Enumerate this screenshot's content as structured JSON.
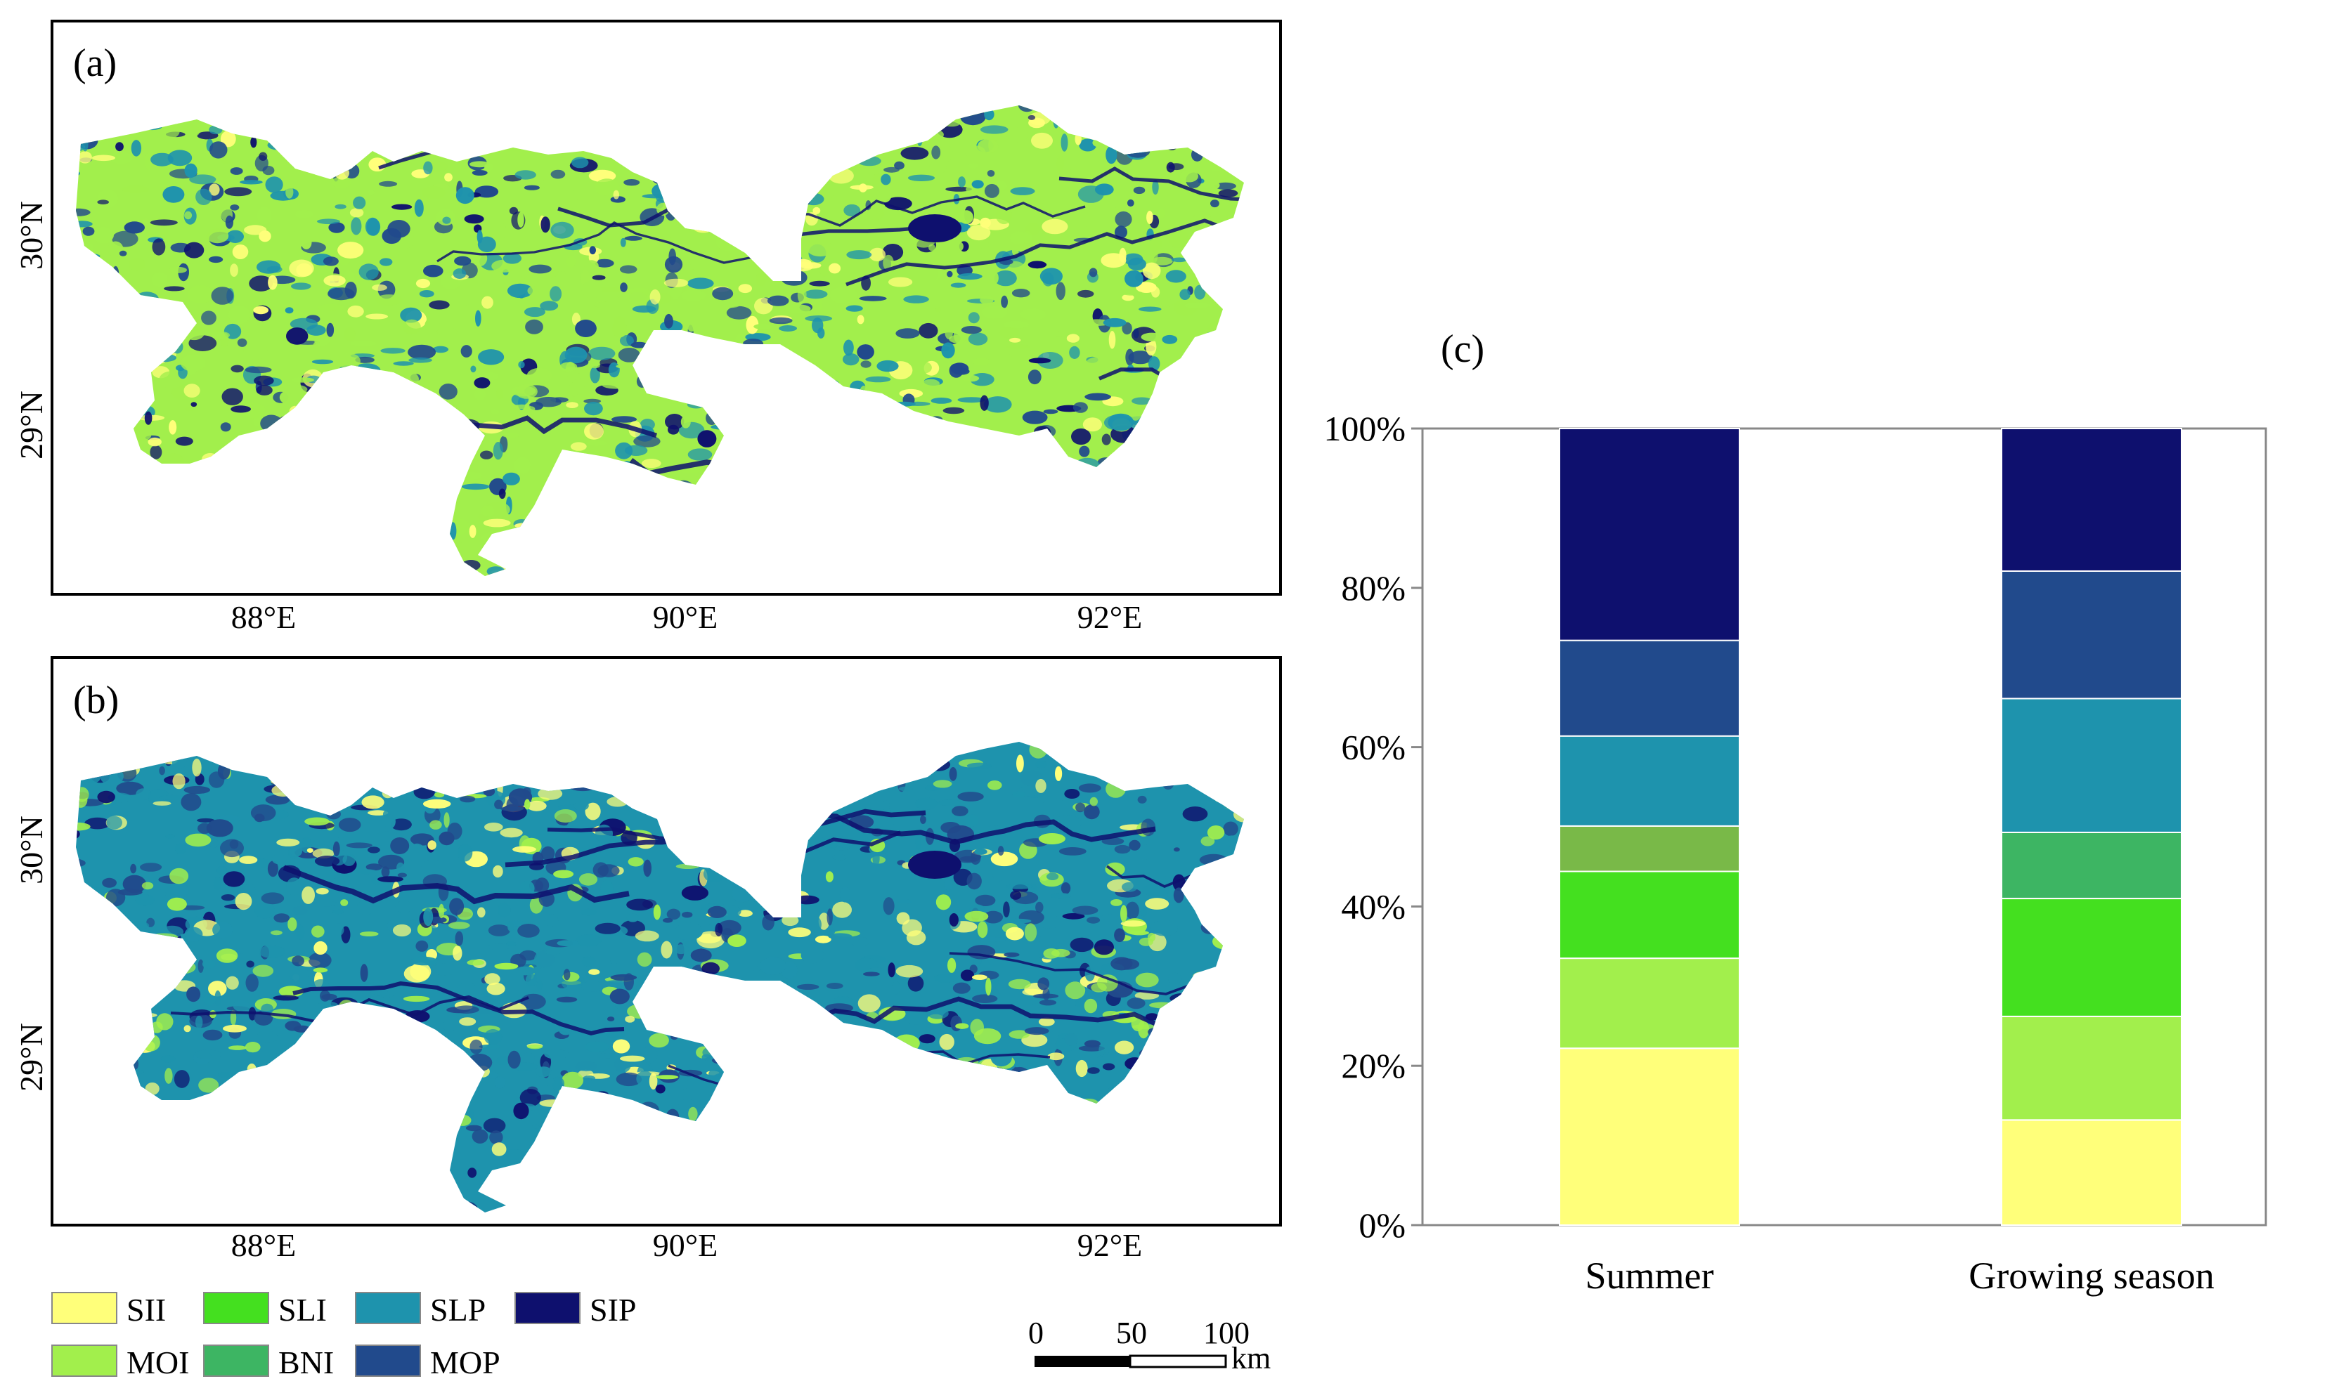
{
  "colors": {
    "SII": "#ffff7a",
    "MOI": "#a2ef4c",
    "SLI": "#44e01f",
    "BNI": "#3db563",
    "SLP": "#1e93ad",
    "MOP": "#214a8c",
    "SIP": "#0e106e",
    "BNI_summer": "#79b948"
  },
  "maps": [
    {
      "panel_label": "(a)",
      "lat_ticks": [
        "30°N",
        "29°N"
      ],
      "lon_ticks": [
        "88°E",
        "90°E",
        "92°E"
      ],
      "dominant_classes": [
        "MOI",
        "SLP",
        "MOP",
        "SII",
        "SIP"
      ]
    },
    {
      "panel_label": "(b)",
      "lat_ticks": [
        "30°N",
        "29°N"
      ],
      "lon_ticks": [
        "88°E",
        "90°E",
        "92°E"
      ],
      "dominant_classes": [
        "SLP",
        "MOP",
        "MOI",
        "SII",
        "SIP"
      ]
    }
  ],
  "legend": {
    "items": [
      "SII",
      "SLI",
      "SLP",
      "SIP",
      "MOI",
      "BNI",
      "MOP"
    ]
  },
  "scalebar": {
    "ticks": [
      "0",
      "50",
      "100"
    ],
    "unit": "km"
  },
  "chart_data": {
    "type": "bar",
    "stacked": true,
    "panel_label": "(c)",
    "categories": [
      "Summer",
      "Growing season"
    ],
    "ylim": [
      0,
      100
    ],
    "yticks": [
      "0%",
      "20%",
      "40%",
      "60%",
      "80%",
      "100%"
    ],
    "series": [
      {
        "name": "SII",
        "values": [
          22.2,
          13.2
        ]
      },
      {
        "name": "MOI",
        "values": [
          11.3,
          13.0
        ]
      },
      {
        "name": "SLI",
        "values": [
          10.9,
          14.8
        ]
      },
      {
        "name": "BNI",
        "values": [
          5.7,
          8.3
        ]
      },
      {
        "name": "SLP",
        "values": [
          11.3,
          16.8
        ]
      },
      {
        "name": "MOP",
        "values": [
          12.0,
          16.0
        ]
      },
      {
        "name": "SIP",
        "values": [
          26.6,
          17.9
        ]
      }
    ]
  }
}
